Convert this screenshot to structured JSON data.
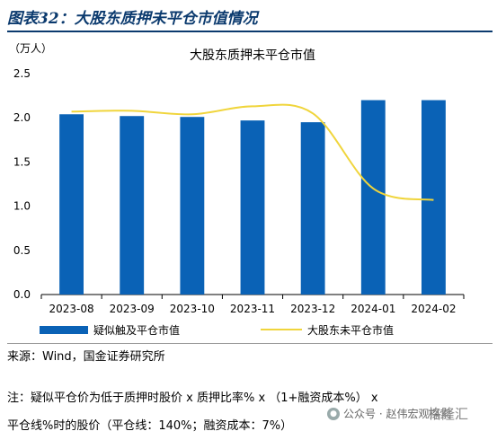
{
  "figure_title": "图表32：大股东质押未平仓市值情况",
  "source": "来源：Wind，国金证券研究所",
  "note": "注：疑似平仓价为低于质押时股价 x 质押比率% x （1+融资成本%） x 平仓线%时的股价（平仓线：140%；融资成本：7%）",
  "watermark": "公众号 · 赵伟宏观探索",
  "brand": "格隆汇",
  "colors": {
    "bar": "#0a62b6",
    "line": "#f0d53c",
    "title": "#0b3a6e"
  },
  "chart_data": {
    "type": "bar",
    "title": "大股东质押未平仓市值",
    "unit_label": "（万人）",
    "categories": [
      "2023-08",
      "2023-09",
      "2023-10",
      "2023-11",
      "2023-12",
      "2024-01",
      "2024-02"
    ],
    "ylim": [
      0,
      2.5
    ],
    "yticks": [
      "0.0",
      "0.5",
      "1.0",
      "1.5",
      "2.0",
      "2.5"
    ],
    "grid": false,
    "legend_position": "bottom",
    "series": [
      {
        "name": "疑似触及平仓市值",
        "type": "bar",
        "values": [
          2.04,
          2.02,
          2.01,
          1.97,
          1.95,
          2.2,
          2.2
        ]
      },
      {
        "name": "大股东未平仓市值",
        "type": "line",
        "values": [
          2.07,
          2.08,
          2.04,
          2.13,
          2.05,
          1.2,
          1.07
        ]
      }
    ]
  }
}
